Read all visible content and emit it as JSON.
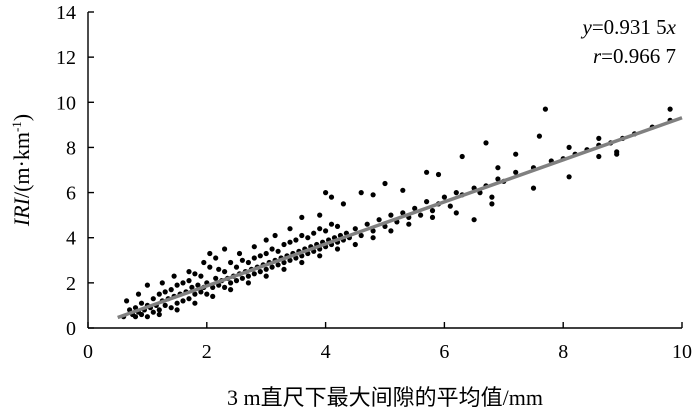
{
  "chart_data": {
    "type": "scatter",
    "xlabel": "3 m直尺下最大间隙的平均值/mm",
    "ylabel_italic": "IRI",
    "ylabel_rest": "/(m·km",
    "ylabel_sup": "-1",
    "ylabel_close": ")",
    "xlim": [
      0,
      10
    ],
    "ylim": [
      0,
      14
    ],
    "xticks": [
      "0",
      "2",
      "4",
      "6",
      "8",
      "10"
    ],
    "yticks": [
      "0",
      "2",
      "4",
      "6",
      "8",
      "10",
      "12",
      "14"
    ],
    "fit": {
      "slope": 0.9315,
      "x_range": [
        0.5,
        10
      ],
      "color": "#808080"
    },
    "annotation": {
      "eq_var_y": "y",
      "eq_text": "=0.931 5",
      "eq_var_x": "x",
      "r_var": "r",
      "r_text": "=0.966 7"
    },
    "series": [
      {
        "points": [
          [
            0.6,
            0.5
          ],
          [
            0.7,
            0.8
          ],
          [
            0.75,
            0.6
          ],
          [
            0.8,
            0.9
          ],
          [
            0.8,
            0.5
          ],
          [
            0.85,
            0.7
          ],
          [
            0.9,
            1.1
          ],
          [
            0.9,
            0.6
          ],
          [
            0.95,
            0.8
          ],
          [
            1.0,
            1.0
          ],
          [
            1.0,
            0.5
          ],
          [
            1.05,
            0.9
          ],
          [
            1.1,
            1.3
          ],
          [
            1.1,
            0.7
          ],
          [
            1.15,
            1.0
          ],
          [
            1.2,
            1.5
          ],
          [
            1.2,
            0.8
          ],
          [
            1.25,
            1.2
          ],
          [
            1.3,
            1.0
          ],
          [
            1.3,
            1.6
          ],
          [
            1.35,
            1.3
          ],
          [
            1.4,
            0.9
          ],
          [
            1.4,
            1.7
          ],
          [
            1.45,
            1.4
          ],
          [
            1.5,
            1.1
          ],
          [
            1.5,
            1.9
          ],
          [
            1.55,
            1.5
          ],
          [
            1.6,
            1.2
          ],
          [
            1.6,
            2.0
          ],
          [
            1.65,
            1.6
          ],
          [
            1.7,
            1.3
          ],
          [
            1.7,
            2.1
          ],
          [
            1.75,
            1.8
          ],
          [
            1.8,
            1.5
          ],
          [
            1.8,
            2.4
          ],
          [
            1.85,
            1.9
          ],
          [
            1.9,
            1.6
          ],
          [
            1.9,
            2.3
          ],
          [
            1.95,
            1.8
          ],
          [
            2.0,
            1.5
          ],
          [
            2.0,
            2.0
          ],
          [
            2.05,
            2.7
          ],
          [
            2.1,
            1.8
          ],
          [
            2.15,
            2.2
          ],
          [
            2.2,
            1.9
          ],
          [
            2.2,
            2.6
          ],
          [
            2.25,
            2.1
          ],
          [
            2.3,
            1.8
          ],
          [
            2.3,
            2.5
          ],
          [
            2.35,
            2.2
          ],
          [
            2.4,
            2.0
          ],
          [
            2.4,
            2.9
          ],
          [
            2.45,
            2.3
          ],
          [
            2.5,
            2.1
          ],
          [
            2.5,
            2.7
          ],
          [
            2.55,
            2.4
          ],
          [
            2.6,
            2.2
          ],
          [
            2.6,
            3.0
          ],
          [
            2.65,
            2.5
          ],
          [
            2.7,
            2.3
          ],
          [
            2.7,
            2.9
          ],
          [
            2.75,
            2.6
          ],
          [
            2.8,
            2.4
          ],
          [
            2.8,
            3.1
          ],
          [
            2.85,
            2.7
          ],
          [
            2.9,
            2.5
          ],
          [
            2.9,
            3.2
          ],
          [
            2.95,
            2.8
          ],
          [
            3.0,
            2.6
          ],
          [
            3.0,
            3.3
          ],
          [
            3.05,
            2.9
          ],
          [
            3.1,
            2.7
          ],
          [
            3.1,
            3.5
          ],
          [
            3.15,
            3.0
          ],
          [
            3.2,
            2.8
          ],
          [
            3.2,
            3.4
          ],
          [
            3.25,
            3.1
          ],
          [
            3.3,
            2.9
          ],
          [
            3.3,
            3.7
          ],
          [
            3.35,
            3.2
          ],
          [
            3.4,
            3.0
          ],
          [
            3.4,
            3.8
          ],
          [
            3.45,
            3.3
          ],
          [
            3.5,
            3.1
          ],
          [
            3.5,
            3.9
          ],
          [
            3.55,
            3.4
          ],
          [
            3.6,
            3.2
          ],
          [
            3.6,
            4.1
          ],
          [
            3.65,
            3.5
          ],
          [
            3.7,
            3.3
          ],
          [
            3.7,
            4.0
          ],
          [
            3.75,
            3.6
          ],
          [
            3.8,
            3.4
          ],
          [
            3.8,
            4.2
          ],
          [
            3.85,
            3.7
          ],
          [
            3.9,
            3.5
          ],
          [
            3.9,
            4.4
          ],
          [
            3.95,
            3.8
          ],
          [
            4.0,
            3.6
          ],
          [
            4.0,
            4.3
          ],
          [
            4.05,
            3.9
          ],
          [
            4.1,
            3.7
          ],
          [
            4.1,
            4.6
          ],
          [
            4.15,
            4.0
          ],
          [
            4.2,
            3.8
          ],
          [
            4.2,
            4.5
          ],
          [
            4.25,
            4.1
          ],
          [
            4.3,
            3.9
          ],
          [
            4.35,
            4.2
          ],
          [
            4.4,
            4.0
          ],
          [
            4.5,
            4.4
          ],
          [
            4.6,
            4.1
          ],
          [
            4.7,
            4.6
          ],
          [
            4.8,
            4.3
          ],
          [
            4.9,
            4.8
          ],
          [
            5.0,
            4.5
          ],
          [
            5.1,
            5.0
          ],
          [
            5.2,
            4.7
          ],
          [
            5.3,
            5.1
          ],
          [
            5.4,
            4.9
          ],
          [
            5.5,
            5.3
          ],
          [
            5.6,
            5.0
          ],
          [
            5.7,
            5.6
          ],
          [
            5.8,
            5.2
          ],
          [
            5.9,
            5.5
          ],
          [
            6.0,
            5.8
          ],
          [
            6.1,
            5.4
          ],
          [
            6.2,
            6.0
          ],
          [
            6.3,
            5.9
          ],
          [
            6.5,
            6.2
          ],
          [
            6.6,
            6.0
          ],
          [
            6.7,
            6.3
          ],
          [
            6.8,
            5.8
          ],
          [
            6.9,
            6.6
          ],
          [
            7.0,
            6.5
          ],
          [
            7.2,
            6.9
          ],
          [
            7.5,
            7.1
          ],
          [
            7.8,
            7.4
          ],
          [
            8.0,
            7.5
          ],
          [
            8.2,
            7.7
          ],
          [
            8.4,
            7.9
          ],
          [
            8.6,
            8.1
          ],
          [
            8.8,
            8.2
          ],
          [
            9.0,
            8.4
          ],
          [
            9.2,
            8.6
          ],
          [
            9.5,
            8.9
          ],
          [
            9.8,
            9.2
          ],
          [
            0.65,
            1.2
          ],
          [
            0.85,
            1.5
          ],
          [
            1.0,
            1.9
          ],
          [
            1.25,
            2.0
          ],
          [
            1.45,
            2.3
          ],
          [
            1.7,
            2.5
          ],
          [
            1.95,
            2.9
          ],
          [
            2.15,
            3.1
          ],
          [
            2.3,
            3.5
          ],
          [
            2.05,
            3.3
          ],
          [
            2.55,
            3.3
          ],
          [
            2.8,
            3.6
          ],
          [
            3.0,
            3.9
          ],
          [
            3.15,
            4.1
          ],
          [
            3.4,
            4.4
          ],
          [
            3.6,
            4.9
          ],
          [
            3.9,
            5.0
          ],
          [
            4.0,
            6.0
          ],
          [
            4.3,
            5.5
          ],
          [
            4.1,
            5.8
          ],
          [
            4.6,
            6.0
          ],
          [
            4.8,
            5.9
          ],
          [
            5.0,
            6.4
          ],
          [
            5.3,
            6.1
          ],
          [
            5.7,
            6.9
          ],
          [
            5.9,
            6.8
          ],
          [
            6.3,
            7.6
          ],
          [
            6.7,
            8.2
          ],
          [
            6.9,
            7.1
          ],
          [
            7.2,
            7.7
          ],
          [
            7.6,
            8.5
          ],
          [
            7.7,
            9.7
          ],
          [
            8.1,
            8.0
          ],
          [
            8.6,
            8.4
          ],
          [
            8.9,
            7.7
          ],
          [
            9.8,
            9.7
          ],
          [
            1.2,
            0.6
          ],
          [
            1.5,
            0.8
          ],
          [
            1.8,
            1.1
          ],
          [
            2.1,
            1.4
          ],
          [
            2.4,
            1.7
          ],
          [
            2.7,
            2.0
          ],
          [
            3.0,
            2.3
          ],
          [
            3.3,
            2.6
          ],
          [
            3.6,
            2.9
          ],
          [
            3.9,
            3.2
          ],
          [
            4.2,
            3.5
          ],
          [
            4.5,
            3.7
          ],
          [
            4.8,
            4.0
          ],
          [
            5.1,
            4.3
          ],
          [
            5.4,
            4.6
          ],
          [
            5.8,
            4.9
          ],
          [
            6.2,
            5.1
          ],
          [
            6.5,
            4.8
          ],
          [
            6.8,
            5.5
          ],
          [
            7.5,
            6.2
          ],
          [
            8.1,
            6.7
          ],
          [
            8.6,
            7.6
          ],
          [
            8.9,
            7.8
          ]
        ]
      }
    ]
  }
}
